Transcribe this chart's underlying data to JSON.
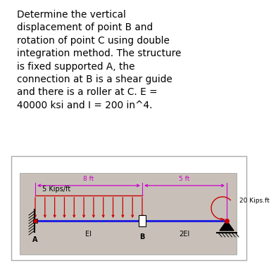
{
  "text_block": "Determine the vertical\ndisplacement of point B and\nrotation of point C using double\nintegration method. The structure\nis fixed supported A, the\nconnection at B is a shear guide\nand there is a roller at C. E =\n40000 ksi and I = 200 in^4.",
  "text_fontsize": 9.8,
  "bg_color": "#ffffff",
  "outer_box_color": "#cccccc",
  "diagram_bg": "#c8c0b8",
  "beam_color": "#2222dd",
  "load_color": "#cc0000",
  "dim_color": "#cc00cc",
  "span_AB_label": "8 ft",
  "span_BC_label": "5 ft",
  "dist_load_label": "5 Kips/ft",
  "moment_label": "20 Kips.ft",
  "EI_label": "EI",
  "EI2_label": "2EI",
  "label_A": "A",
  "label_B": "B"
}
